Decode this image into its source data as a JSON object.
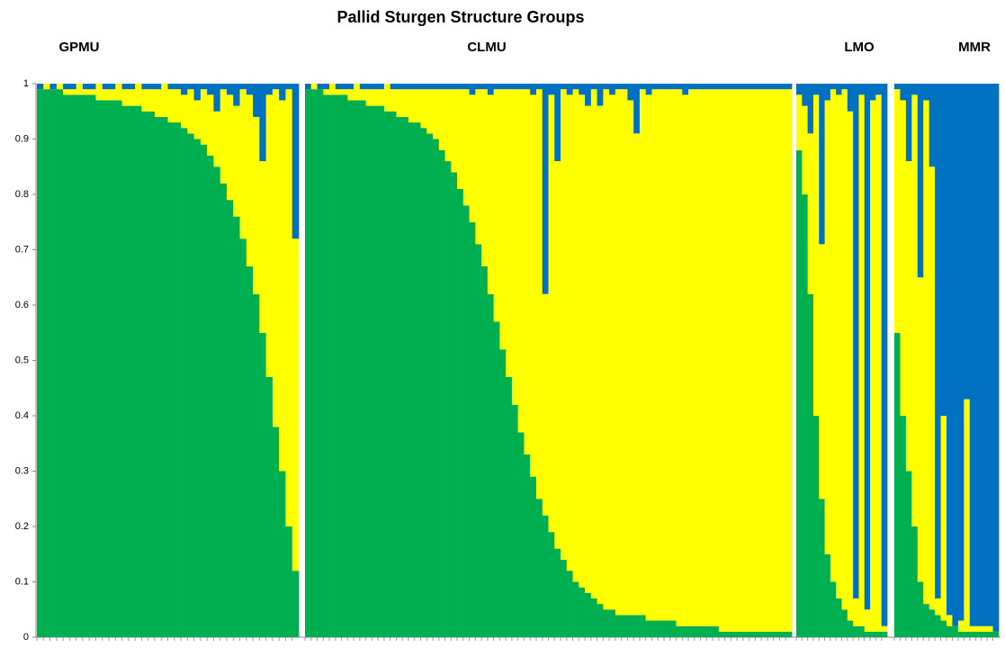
{
  "chart_data": {
    "type": "stacked-bar",
    "title": "Pallid Sturgen Structure Groups",
    "ylim": [
      0,
      1
    ],
    "yticks": [
      0,
      0.1,
      0.2,
      0.3,
      0.4,
      0.5,
      0.6,
      0.7,
      0.8,
      0.9,
      1
    ],
    "groups": [
      {
        "name": "GPMU",
        "series": [
          {
            "color": "#00b050",
            "values": [
              0.99,
              0.99,
              0.99,
              0.99,
              0.98,
              0.98,
              0.98,
              0.98,
              0.98,
              0.97,
              0.97,
              0.97,
              0.97,
              0.96,
              0.96,
              0.96,
              0.95,
              0.95,
              0.94,
              0.94,
              0.93,
              0.93,
              0.92,
              0.91,
              0.9,
              0.89,
              0.87,
              0.85,
              0.82,
              0.79,
              0.76,
              0.72,
              0.67,
              0.62,
              0.55,
              0.47,
              0.38,
              0.3,
              0.2,
              0.12
            ]
          },
          {
            "color": "#ffff00",
            "values": [
              0,
              0.01,
              0,
              0.01,
              0.01,
              0.01,
              0.02,
              0.01,
              0.01,
              0.03,
              0.02,
              0.02,
              0.03,
              0.03,
              0.03,
              0.04,
              0.04,
              0.04,
              0.05,
              0.06,
              0.06,
              0.06,
              0.06,
              0.08,
              0.07,
              0.1,
              0.11,
              0.1,
              0.17,
              0.19,
              0.2,
              0.27,
              0.31,
              0.32,
              0.31,
              0.51,
              0.61,
              0.67,
              0.79,
              0.6
            ]
          },
          {
            "color": "#0070c0",
            "values": [
              0.01,
              0,
              0.01,
              0,
              0.01,
              0.01,
              0,
              0.01,
              0.01,
              0,
              0.01,
              0.01,
              0,
              0.01,
              0.01,
              0,
              0.01,
              0.01,
              0.01,
              0,
              0.01,
              0.01,
              0.02,
              0.01,
              0.03,
              0.01,
              0.02,
              0.05,
              0.01,
              0.02,
              0.04,
              0.01,
              0.02,
              0.06,
              0.14,
              0.02,
              0.01,
              0.03,
              0.01,
              0.28
            ]
          }
        ]
      },
      {
        "name": "CLMU",
        "series": [
          {
            "color": "#00b050",
            "values": [
              0.99,
              0.99,
              0.99,
              0.98,
              0.98,
              0.98,
              0.98,
              0.97,
              0.97,
              0.97,
              0.96,
              0.96,
              0.96,
              0.95,
              0.95,
              0.94,
              0.94,
              0.93,
              0.93,
              0.92,
              0.91,
              0.9,
              0.88,
              0.86,
              0.84,
              0.81,
              0.78,
              0.75,
              0.71,
              0.67,
              0.62,
              0.57,
              0.52,
              0.47,
              0.42,
              0.37,
              0.33,
              0.29,
              0.25,
              0.22,
              0.19,
              0.16,
              0.14,
              0.12,
              0.1,
              0.09,
              0.08,
              0.07,
              0.06,
              0.05,
              0.05,
              0.04,
              0.04,
              0.04,
              0.04,
              0.04,
              0.03,
              0.03,
              0.03,
              0.03,
              0.03,
              0.02,
              0.02,
              0.02,
              0.02,
              0.02,
              0.02,
              0.02,
              0.01,
              0.01,
              0.01,
              0.01,
              0.01,
              0.01,
              0.01,
              0.01,
              0.01,
              0.01,
              0.01,
              0.01
            ]
          },
          {
            "color": "#ffff00",
            "values": [
              0,
              0.01,
              0,
              0.01,
              0.02,
              0.01,
              0.01,
              0.02,
              0.03,
              0.02,
              0.03,
              0.03,
              0.03,
              0.05,
              0.04,
              0.05,
              0.05,
              0.06,
              0.06,
              0.07,
              0.08,
              0.09,
              0.11,
              0.13,
              0.15,
              0.18,
              0.21,
              0.23,
              0.28,
              0.32,
              0.36,
              0.42,
              0.47,
              0.52,
              0.57,
              0.62,
              0.66,
              0.69,
              0.74,
              0.4,
              0.79,
              0.7,
              0.85,
              0.86,
              0.89,
              0.89,
              0.88,
              0.92,
              0.9,
              0.94,
              0.93,
              0.95,
              0.95,
              0.93,
              0.87,
              0.95,
              0.95,
              0.96,
              0.96,
              0.96,
              0.96,
              0.97,
              0.96,
              0.97,
              0.97,
              0.97,
              0.97,
              0.97,
              0.98,
              0.98,
              0.98,
              0.98,
              0.98,
              0.98,
              0.98,
              0.98,
              0.98,
              0.98,
              0.98,
              0.98
            ]
          },
          {
            "color": "#0070c0",
            "values": [
              0.01,
              0,
              0.01,
              0.01,
              0,
              0.01,
              0.01,
              0.01,
              0,
              0.01,
              0.01,
              0.01,
              0.01,
              0,
              0.01,
              0.01,
              0.01,
              0.01,
              0.01,
              0.01,
              0.01,
              0.01,
              0.01,
              0.01,
              0.01,
              0.01,
              0.01,
              0.02,
              0.01,
              0.01,
              0.02,
              0.01,
              0.01,
              0.01,
              0.01,
              0.01,
              0.01,
              0.02,
              0.01,
              0.38,
              0.02,
              0.14,
              0.01,
              0.02,
              0.01,
              0.02,
              0.04,
              0.01,
              0.04,
              0.01,
              0.02,
              0.01,
              0.01,
              0.03,
              0.09,
              0.01,
              0.02,
              0.01,
              0.01,
              0.01,
              0.01,
              0.01,
              0.02,
              0.01,
              0.01,
              0.01,
              0.01,
              0.01,
              0.01,
              0.01,
              0.01,
              0.01,
              0.01,
              0.01,
              0.01,
              0.01,
              0.01,
              0.01,
              0.01,
              0.01
            ]
          }
        ]
      },
      {
        "name": "LMO",
        "series": [
          {
            "color": "#00b050",
            "values": [
              0.88,
              0.8,
              0.62,
              0.4,
              0.25,
              0.15,
              0.1,
              0.07,
              0.05,
              0.03,
              0.02,
              0.02,
              0.01,
              0.01,
              0.01,
              0.01
            ]
          },
          {
            "color": "#ffff00",
            "values": [
              0.1,
              0.16,
              0.29,
              0.58,
              0.46,
              0.82,
              0.89,
              0.91,
              0.94,
              0.92,
              0.05,
              0.96,
              0.04,
              0.96,
              0.97,
              0.01
            ]
          },
          {
            "color": "#0070c0",
            "values": [
              0.02,
              0.04,
              0.09,
              0.02,
              0.29,
              0.03,
              0.01,
              0.02,
              0.01,
              0.05,
              0.93,
              0.02,
              0.95,
              0.03,
              0.02,
              0.98
            ]
          }
        ]
      },
      {
        "name": "MMR",
        "series": [
          {
            "color": "#00b050",
            "values": [
              0.55,
              0.4,
              0.3,
              0.2,
              0.1,
              0.06,
              0.05,
              0.04,
              0.03,
              0.02,
              0.02,
              0.01,
              0.01,
              0.01,
              0.01,
              0.01,
              0.01,
              0.01
            ]
          },
          {
            "color": "#ffff00",
            "values": [
              0.44,
              0.57,
              0.56,
              0.78,
              0.55,
              0.91,
              0.8,
              0.03,
              0.37,
              0.02,
              0,
              0.02,
              0.42,
              0.01,
              0.01,
              0.01,
              0.01,
              0
            ]
          },
          {
            "color": "#0070c0",
            "values": [
              0.01,
              0.03,
              0.14,
              0.02,
              0.35,
              0.03,
              0.15,
              0.93,
              0.6,
              0.96,
              0.98,
              0.97,
              0.57,
              0.98,
              0.98,
              0.98,
              0.98,
              0.99
            ]
          }
        ]
      }
    ]
  }
}
